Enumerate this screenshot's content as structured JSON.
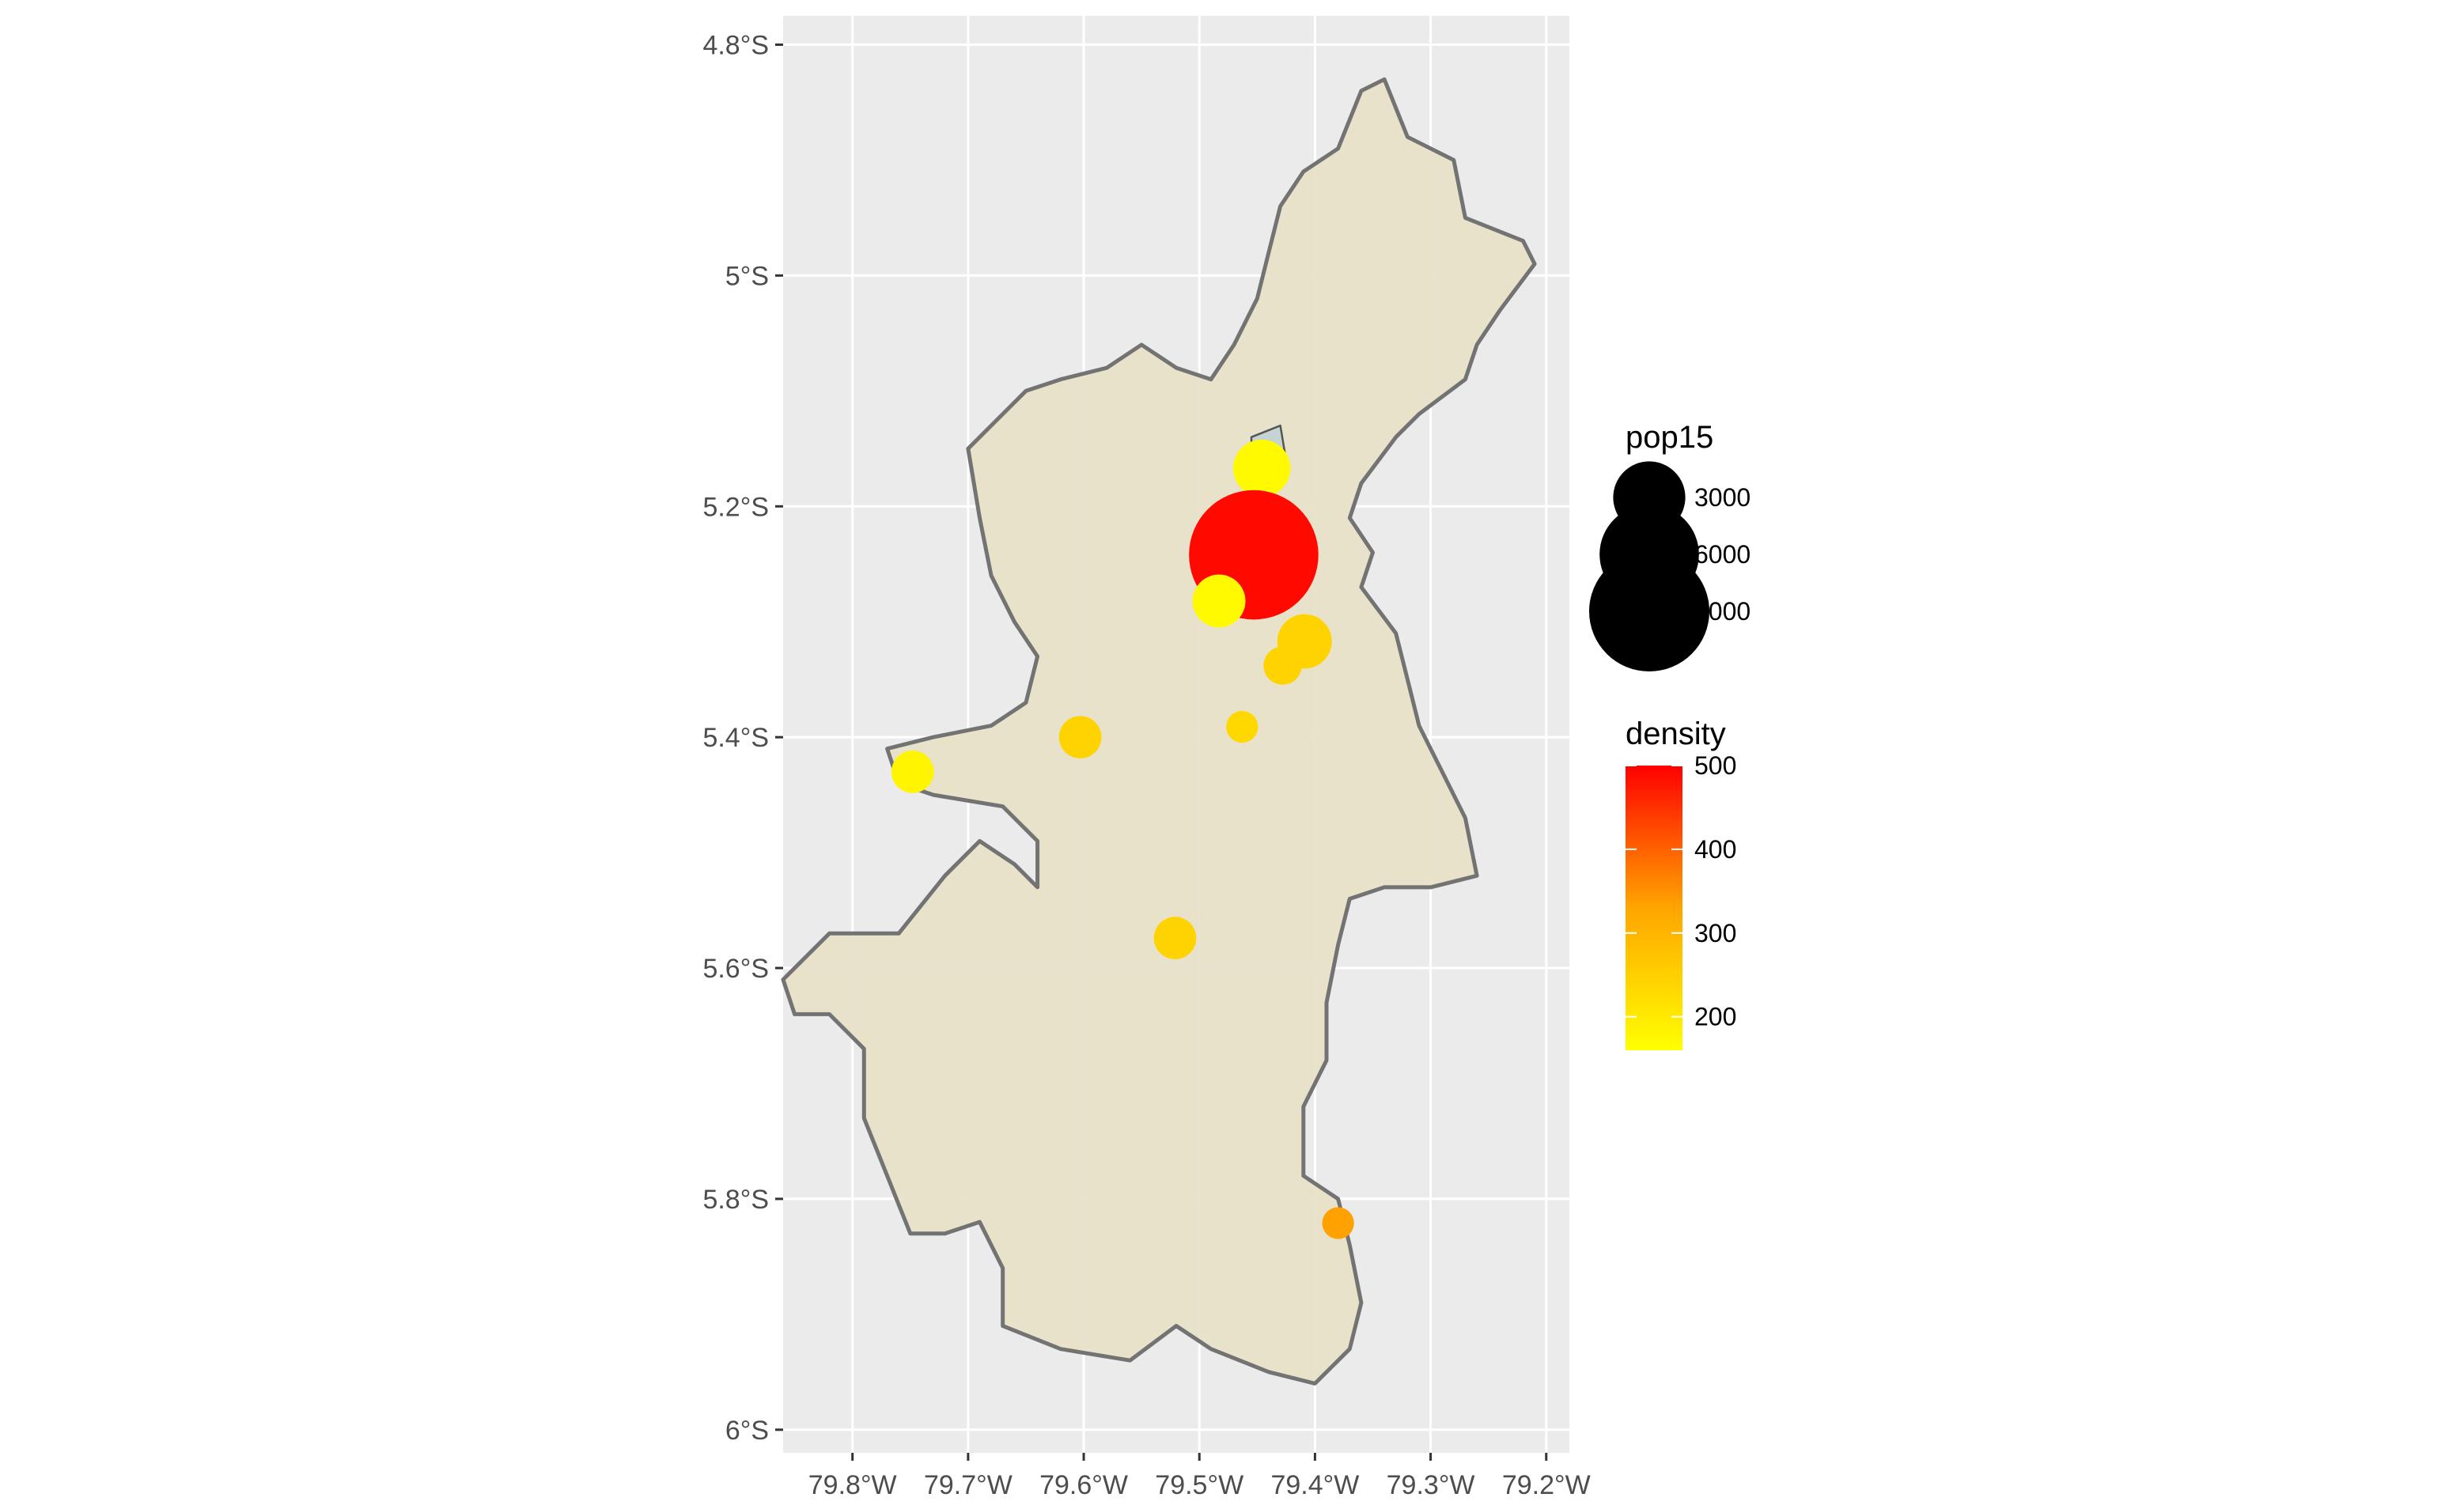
{
  "map": {
    "x_axis": {
      "range": [
        -79.86,
        -79.18
      ],
      "ticks": [
        {
          "value": -79.8,
          "label": "79.8°W"
        },
        {
          "value": -79.7,
          "label": "79.7°W"
        },
        {
          "value": -79.6,
          "label": "79.6°W"
        },
        {
          "value": -79.5,
          "label": "79.5°W"
        },
        {
          "value": -79.4,
          "label": "79.4°W"
        },
        {
          "value": -79.3,
          "label": "79.3°W"
        },
        {
          "value": -79.2,
          "label": "79.2°W"
        }
      ]
    },
    "y_axis": {
      "range": [
        -6.02,
        -4.775
      ],
      "ticks": [
        {
          "value": -4.8,
          "label": "4.8°S"
        },
        {
          "value": -5.0,
          "label": "5°S"
        },
        {
          "value": -5.2,
          "label": "5.2°S"
        },
        {
          "value": -5.4,
          "label": "5.4°S"
        },
        {
          "value": -5.6,
          "label": "5.6°S"
        },
        {
          "value": -5.8,
          "label": "5.8°S"
        },
        {
          "value": -6.0,
          "label": "6°S"
        }
      ]
    },
    "colors": {
      "panel_background": "#ebebeb",
      "grid": "#ffffff",
      "region_fill": "#e8e1c9",
      "region_stroke": "#737373",
      "urban_fill": "#c5d3d3",
      "density_low": "#ffff00",
      "density_mid": "#ffa500",
      "density_high": "#ff0000"
    },
    "region_outline": [
      [
        -79.34,
        -4.83
      ],
      [
        -79.32,
        -4.88
      ],
      [
        -79.28,
        -4.9
      ],
      [
        -79.27,
        -4.95
      ],
      [
        -79.22,
        -4.97
      ],
      [
        -79.21,
        -4.99
      ],
      [
        -79.24,
        -5.03
      ],
      [
        -79.26,
        -5.06
      ],
      [
        -79.27,
        -5.09
      ],
      [
        -79.31,
        -5.12
      ],
      [
        -79.33,
        -5.14
      ],
      [
        -79.36,
        -5.18
      ],
      [
        -79.37,
        -5.21
      ],
      [
        -79.35,
        -5.24
      ],
      [
        -79.36,
        -5.27
      ],
      [
        -79.33,
        -5.31
      ],
      [
        -79.32,
        -5.35
      ],
      [
        -79.31,
        -5.39
      ],
      [
        -79.29,
        -5.43
      ],
      [
        -79.27,
        -5.47
      ],
      [
        -79.26,
        -5.52
      ],
      [
        -79.3,
        -5.53
      ],
      [
        -79.34,
        -5.53
      ],
      [
        -79.37,
        -5.54
      ],
      [
        -79.38,
        -5.58
      ],
      [
        -79.39,
        -5.63
      ],
      [
        -79.39,
        -5.68
      ],
      [
        -79.41,
        -5.72
      ],
      [
        -79.41,
        -5.78
      ],
      [
        -79.38,
        -5.8
      ],
      [
        -79.37,
        -5.84
      ],
      [
        -79.36,
        -5.89
      ],
      [
        -79.37,
        -5.93
      ],
      [
        -79.4,
        -5.96
      ],
      [
        -79.44,
        -5.95
      ],
      [
        -79.49,
        -5.93
      ],
      [
        -79.52,
        -5.91
      ],
      [
        -79.56,
        -5.94
      ],
      [
        -79.62,
        -5.93
      ],
      [
        -79.67,
        -5.91
      ],
      [
        -79.67,
        -5.86
      ],
      [
        -79.69,
        -5.82
      ],
      [
        -79.72,
        -5.83
      ],
      [
        -79.75,
        -5.83
      ],
      [
        -79.77,
        -5.78
      ],
      [
        -79.79,
        -5.73
      ],
      [
        -79.79,
        -5.67
      ],
      [
        -79.82,
        -5.64
      ],
      [
        -79.85,
        -5.64
      ],
      [
        -79.86,
        -5.61
      ],
      [
        -79.82,
        -5.57
      ],
      [
        -79.76,
        -5.57
      ],
      [
        -79.72,
        -5.52
      ],
      [
        -79.69,
        -5.49
      ],
      [
        -79.66,
        -5.51
      ],
      [
        -79.64,
        -5.53
      ],
      [
        -79.64,
        -5.49
      ],
      [
        -79.67,
        -5.46
      ],
      [
        -79.73,
        -5.45
      ],
      [
        -79.76,
        -5.44
      ],
      [
        -79.77,
        -5.41
      ],
      [
        -79.73,
        -5.4
      ],
      [
        -79.68,
        -5.39
      ],
      [
        -79.65,
        -5.37
      ],
      [
        -79.64,
        -5.33
      ],
      [
        -79.66,
        -5.3
      ],
      [
        -79.68,
        -5.26
      ],
      [
        -79.69,
        -5.21
      ],
      [
        -79.7,
        -5.15
      ],
      [
        -79.68,
        -5.13
      ],
      [
        -79.65,
        -5.1
      ],
      [
        -79.62,
        -5.09
      ],
      [
        -79.58,
        -5.08
      ],
      [
        -79.55,
        -5.06
      ],
      [
        -79.52,
        -5.08
      ],
      [
        -79.49,
        -5.09
      ],
      [
        -79.47,
        -5.06
      ],
      [
        -79.45,
        -5.02
      ],
      [
        -79.44,
        -4.98
      ],
      [
        -79.43,
        -4.94
      ],
      [
        -79.41,
        -4.91
      ],
      [
        -79.38,
        -4.89
      ],
      [
        -79.36,
        -4.84
      ]
    ],
    "urban_areas": [
      [
        [
          -79.455,
          -5.14
        ],
        [
          -79.43,
          -5.13
        ],
        [
          -79.425,
          -5.16
        ],
        [
          -79.44,
          -5.18
        ],
        [
          -79.44,
          -5.22
        ],
        [
          -79.455,
          -5.2
        ],
        [
          -79.455,
          -5.17
        ]
      ],
      [
        [
          -79.475,
          -5.22
        ],
        [
          -79.445,
          -5.215
        ],
        [
          -79.43,
          -5.24
        ],
        [
          -79.445,
          -5.27
        ],
        [
          -79.475,
          -5.26
        ]
      ],
      [
        [
          -79.49,
          -5.26
        ],
        [
          -79.47,
          -5.26
        ],
        [
          -79.465,
          -5.285
        ],
        [
          -79.475,
          -5.3
        ],
        [
          -79.49,
          -5.29
        ]
      ],
      [
        [
          -79.42,
          -5.305
        ],
        [
          -79.4,
          -5.305
        ],
        [
          -79.395,
          -5.325
        ],
        [
          -79.42,
          -5.33
        ]
      ],
      [
        [
          -79.61,
          -5.39
        ],
        [
          -79.6,
          -5.39
        ],
        [
          -79.595,
          -5.405
        ],
        [
          -79.61,
          -5.405
        ]
      ],
      [
        [
          -79.765,
          -5.425
        ],
        [
          -79.745,
          -5.42
        ],
        [
          -79.735,
          -5.43
        ],
        [
          -79.755,
          -5.44
        ]
      ],
      [
        [
          -79.53,
          -5.565
        ],
        [
          -79.515,
          -5.565
        ],
        [
          -79.515,
          -5.585
        ],
        [
          -79.53,
          -5.58
        ]
      ],
      [
        [
          -79.47,
          -5.385
        ],
        [
          -79.455,
          -5.385
        ],
        [
          -79.455,
          -5.395
        ],
        [
          -79.47,
          -5.395
        ]
      ],
      [
        [
          -79.435,
          -5.335
        ],
        [
          -79.425,
          -5.335
        ],
        [
          -79.425,
          -5.345
        ],
        [
          -79.435,
          -5.345
        ]
      ]
    ],
    "points": [
      {
        "lon": -79.446,
        "lat": -5.167,
        "pop15": 1800,
        "density": 160
      },
      {
        "lon": -79.453,
        "lat": -5.242,
        "pop15": 10500,
        "density": 510
      },
      {
        "lon": -79.483,
        "lat": -5.282,
        "pop15": 1500,
        "density": 160
      },
      {
        "lon": -79.409,
        "lat": -5.317,
        "pop15": 1600,
        "density": 240
      },
      {
        "lon": -79.428,
        "lat": -5.338,
        "pop15": 700,
        "density": 240
      },
      {
        "lon": -79.463,
        "lat": -5.391,
        "pop15": 450,
        "density": 230
      },
      {
        "lon": -79.603,
        "lat": -5.4,
        "pop15": 900,
        "density": 240
      },
      {
        "lon": -79.748,
        "lat": -5.43,
        "pop15": 900,
        "density": 170
      },
      {
        "lon": -79.521,
        "lat": -5.574,
        "pop15": 900,
        "density": 240
      },
      {
        "lon": -79.38,
        "lat": -5.821,
        "pop15": 450,
        "density": 340
      }
    ],
    "density_range": [
      150,
      520
    ]
  },
  "legend": {
    "size_title": "pop15",
    "size_items": [
      {
        "label": "3000",
        "value": 3000
      },
      {
        "label": "6000",
        "value": 6000
      },
      {
        "label": "9000",
        "value": 9000
      }
    ],
    "color_title": "density",
    "color_ticks": [
      {
        "label": "500",
        "value": 500
      },
      {
        "label": "400",
        "value": 400
      },
      {
        "label": "300",
        "value": 300
      },
      {
        "label": "200",
        "value": 200
      }
    ]
  }
}
